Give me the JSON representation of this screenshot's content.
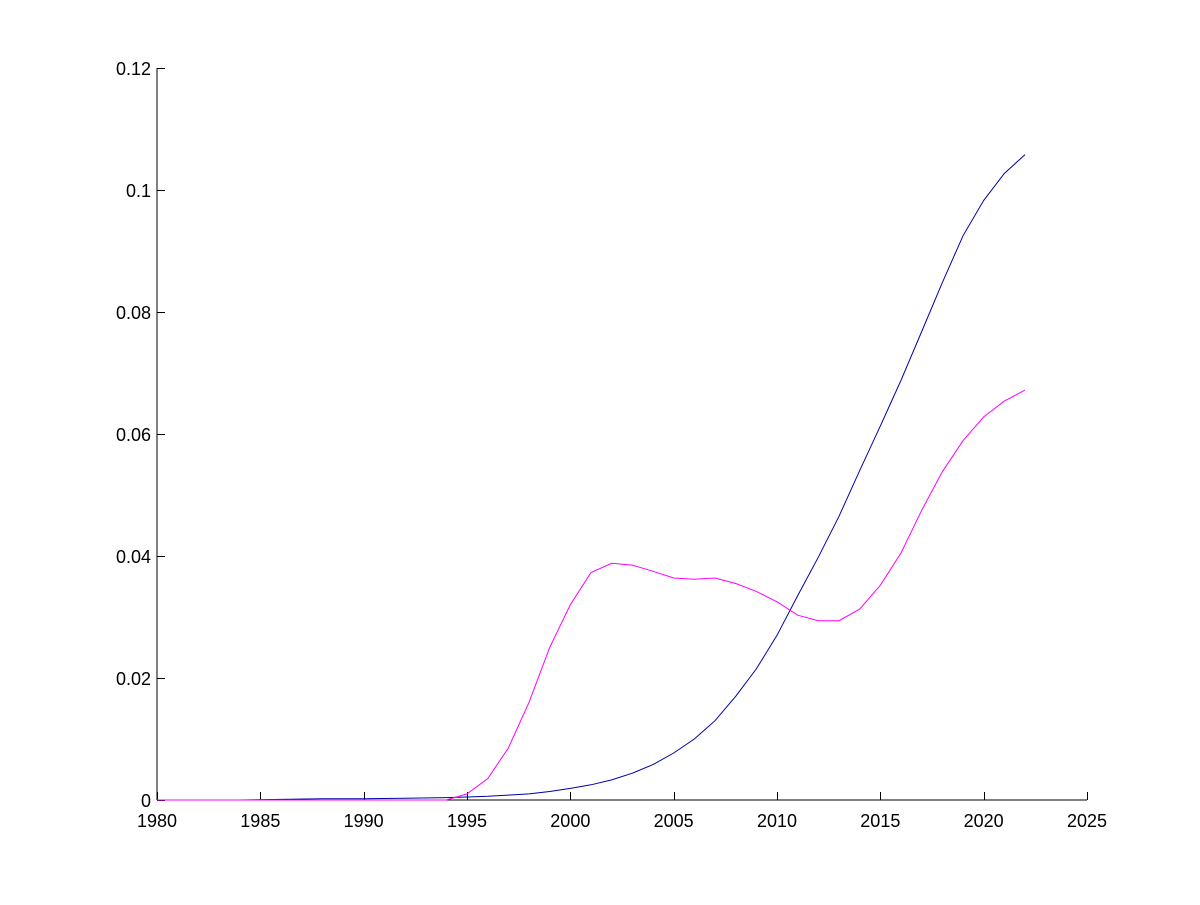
{
  "chart_data": {
    "type": "line",
    "title": "",
    "xlabel": "",
    "ylabel": "",
    "xlim": [
      1980,
      2025
    ],
    "ylim": [
      0,
      0.12
    ],
    "x_ticks": [
      1980,
      1985,
      1990,
      1995,
      2000,
      2005,
      2010,
      2015,
      2020,
      2025
    ],
    "x_tick_labels": [
      "1980",
      "1985",
      "1990",
      "1995",
      "2000",
      "2005",
      "2010",
      "2015",
      "2020",
      "2025"
    ],
    "y_ticks": [
      0,
      0.02,
      0.04,
      0.06,
      0.08,
      0.1,
      0.12
    ],
    "y_tick_labels": [
      "0",
      "0.02",
      "0.04",
      "0.06",
      "0.08",
      "0.1",
      "0.12"
    ],
    "grid": false,
    "background": "#ffffff",
    "axis_color": "#000000",
    "series": [
      {
        "color": "#0000aa",
        "x": [
          1980,
          1982,
          1984,
          1986,
          1988,
          1990,
          1992,
          1994,
          1995,
          1996,
          1997,
          1998,
          1999,
          2000,
          2001,
          2002,
          2003,
          2004,
          2005,
          2006,
          2007,
          2008,
          2009,
          2010,
          2011,
          2012,
          2013,
          2014,
          2015,
          2016,
          2017,
          2018,
          2019,
          2020,
          2021,
          2022
        ],
        "y": [
          0,
          0,
          0,
          0.0001,
          0.0002,
          0.0002,
          0.0003,
          0.0004,
          0.0005,
          0.0006,
          0.0008,
          0.001,
          0.0014,
          0.0019,
          0.0025,
          0.0033,
          0.0044,
          0.0058,
          0.0077,
          0.01,
          0.013,
          0.017,
          0.0215,
          0.027,
          0.0335,
          0.0398,
          0.0465,
          0.054,
          0.0613,
          0.0688,
          0.0768,
          0.0848,
          0.0925,
          0.0983,
          0.1027,
          0.1058
        ]
      },
      {
        "color": "#ff00ff",
        "x": [
          1980,
          1982,
          1984,
          1986,
          1988,
          1990,
          1992,
          1994,
          1995,
          1996,
          1997,
          1998,
          1999,
          2000,
          2001,
          2002,
          2003,
          2004,
          2005,
          2006,
          2007,
          2008,
          2009,
          2010,
          2011,
          2012,
          2013,
          2014,
          2015,
          2016,
          2017,
          2018,
          2019,
          2020,
          2021,
          2022
        ],
        "y": [
          0,
          0,
          0,
          0,
          0,
          0,
          0,
          0,
          0.001,
          0.0035,
          0.0085,
          0.016,
          0.025,
          0.032,
          0.0373,
          0.0388,
          0.0385,
          0.0375,
          0.0364,
          0.0362,
          0.0364,
          0.0355,
          0.0342,
          0.0325,
          0.0303,
          0.0294,
          0.0294,
          0.0313,
          0.0352,
          0.0405,
          0.0475,
          0.0538,
          0.0589,
          0.0628,
          0.0654,
          0.0672
        ]
      }
    ]
  }
}
